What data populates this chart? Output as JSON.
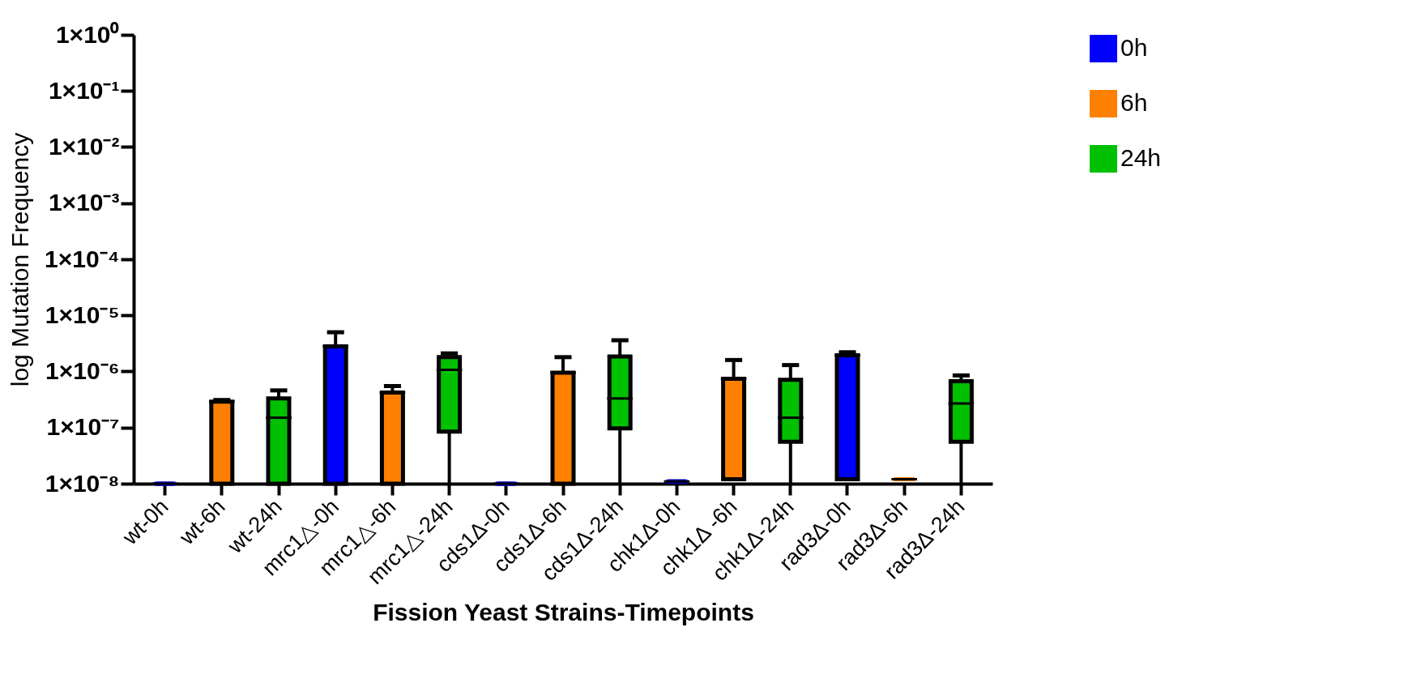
{
  "chart_data": {
    "type": "box",
    "xlabel": "Fission Yeast Strains-Timepoints",
    "ylabel": "log Mutation Frequency",
    "categories": [
      "wt-0h",
      "wt-6h",
      "wt-24h",
      "mrc1△-0h",
      "mrc1△-6h",
      "mrc1△-24h",
      "cds1Δ-0h",
      "cds1Δ-6h",
      "cds1Δ-24h",
      "chk1Δ-0h",
      "chk1Δ -6h",
      "chk1Δ-24h",
      "rad3Δ-0h",
      "rad3Δ-6h",
      "rad3Δ-24h"
    ],
    "log": true,
    "ylim": [
      1e-08,
      1
    ],
    "yticks": [
      {
        "value": 1e-08,
        "label": "1×10⁻⁸"
      },
      {
        "value": 1e-07,
        "label": "1×10⁻⁷"
      },
      {
        "value": 1e-06,
        "label": "1×10⁻⁶"
      },
      {
        "value": 1e-05,
        "label": "1×10⁻⁵"
      },
      {
        "value": 0.0001,
        "label": "1×10⁻⁴"
      },
      {
        "value": 0.001,
        "label": "1×10⁻³"
      },
      {
        "value": 0.01,
        "label": "1×10⁻²"
      },
      {
        "value": 0.1,
        "label": "1×10⁻¹"
      },
      {
        "value": 1,
        "label": "1×10⁰"
      }
    ],
    "legend": "top right",
    "grid": false,
    "series": [
      {
        "name": "0h",
        "color": "#0000ff",
        "boxes": [
          {
            "low": 1e-08,
            "q1": 1e-08,
            "median": 1e-08,
            "q3": 1e-08,
            "high": 1e-08
          },
          null,
          null,
          {
            "low": 1e-08,
            "q1": 1e-08,
            "median": 2.8e-06,
            "q3": 2.8e-06,
            "high": 5e-06
          },
          null,
          null,
          {
            "low": 1e-08,
            "q1": 1e-08,
            "median": 1e-08,
            "q3": 1e-08,
            "high": 1e-08
          },
          null,
          null,
          {
            "low": 1.1e-08,
            "q1": 1.1e-08,
            "median": 1.1e-08,
            "q3": 1.1e-08,
            "high": 1.1e-08
          },
          null,
          null,
          {
            "low": 1.2e-08,
            "q1": 1.2e-08,
            "median": 1.95e-06,
            "q3": 1.95e-06,
            "high": 2.2e-06
          },
          null,
          null
        ]
      },
      {
        "name": "6h",
        "color": "#ff8000",
        "boxes": [
          null,
          {
            "low": 1e-08,
            "q1": 1e-08,
            "median": 2.9e-07,
            "q3": 2.9e-07,
            "high": 3.1e-07
          },
          null,
          null,
          {
            "low": 1e-08,
            "q1": 1e-08,
            "median": 4.2e-07,
            "q3": 4.2e-07,
            "high": 5.5e-07
          },
          null,
          null,
          {
            "low": 1e-08,
            "q1": 1e-08,
            "median": 9.5e-07,
            "q3": 9.5e-07,
            "high": 1.8e-06
          },
          null,
          null,
          {
            "low": 1.2e-08,
            "q1": 1.2e-08,
            "median": 7.4e-07,
            "q3": 7.4e-07,
            "high": 1.6e-06
          },
          null,
          null,
          {
            "low": 1.2e-08,
            "q1": 1.2e-08,
            "median": 1.2e-08,
            "q3": 1.2e-08,
            "high": 1.2e-08
          },
          null
        ]
      },
      {
        "name": "24h",
        "color": "#00c000",
        "boxes": [
          null,
          null,
          {
            "low": 1e-08,
            "q1": 1e-08,
            "median": 1.5e-07,
            "q3": 3.3e-07,
            "high": 4.6e-07
          },
          null,
          null,
          {
            "low": 1e-08,
            "q1": 8.5e-08,
            "median": 1.07e-06,
            "q3": 1.8e-06,
            "high": 2.1e-06
          },
          null,
          null,
          {
            "low": 1e-08,
            "q1": 9.7e-08,
            "median": 3.3e-07,
            "q3": 1.85e-06,
            "high": 3.6e-06
          },
          null,
          null,
          {
            "low": 1e-08,
            "q1": 5.6e-08,
            "median": 1.5e-07,
            "q3": 7.1e-07,
            "high": 1.3e-06
          },
          null,
          null,
          {
            "low": 1e-08,
            "q1": 5.6e-08,
            "median": 2.7e-07,
            "q3": 6.7e-07,
            "high": 8.5e-07
          }
        ]
      }
    ]
  }
}
